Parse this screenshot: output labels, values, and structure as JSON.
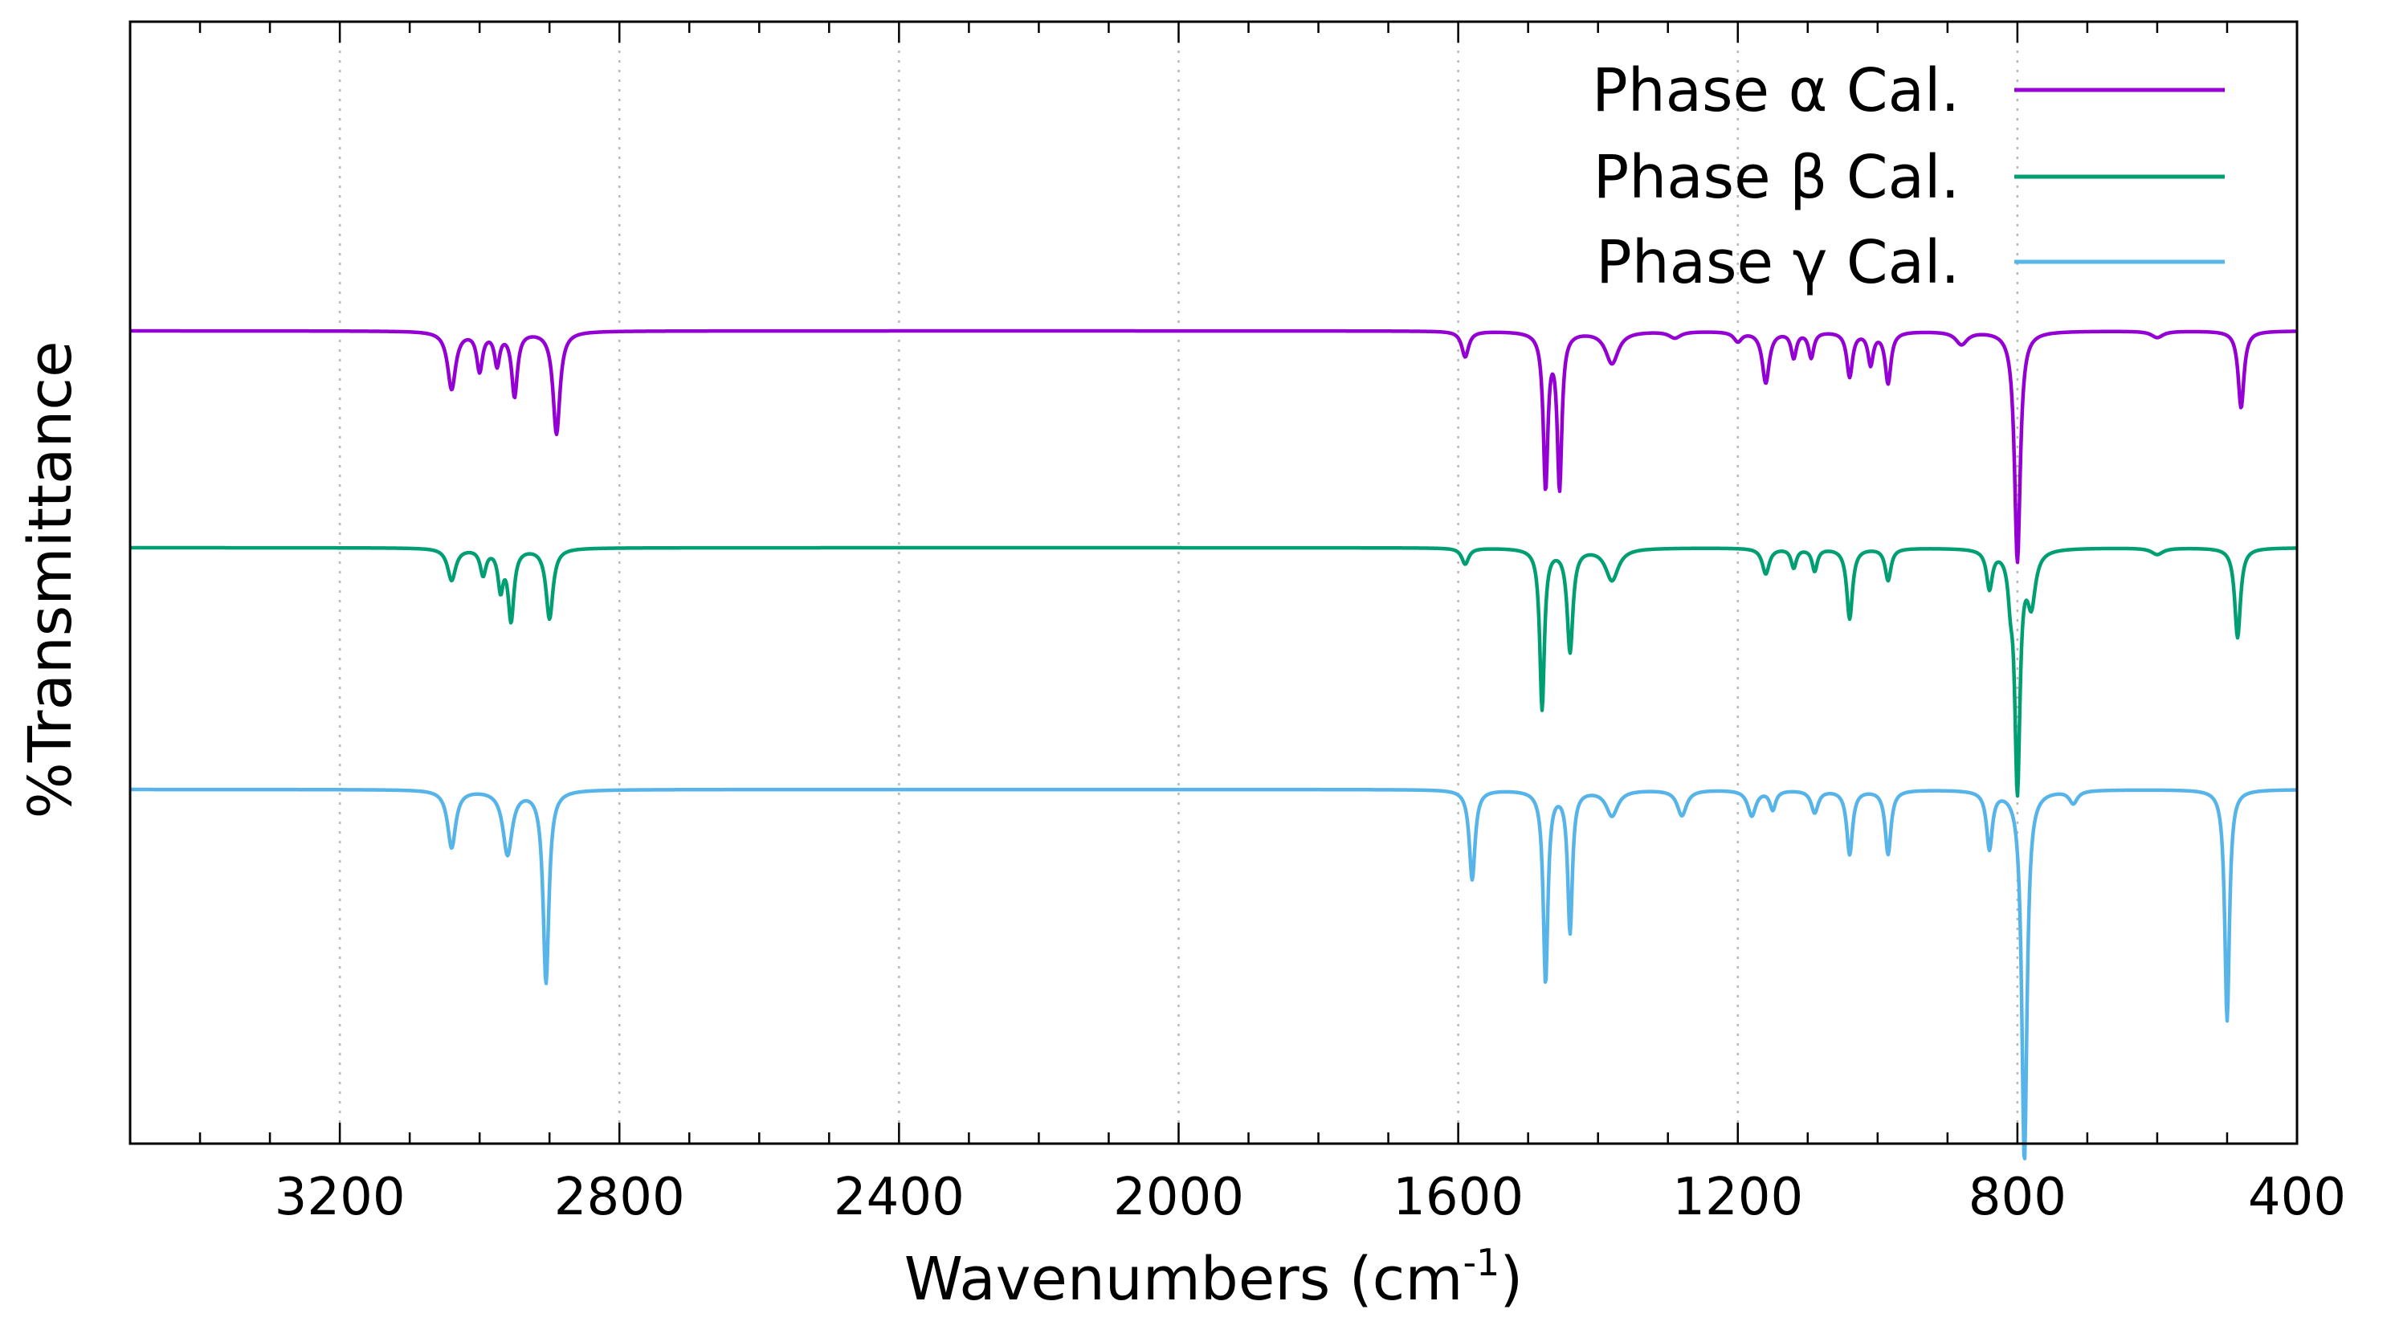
{
  "chart_data": {
    "type": "line",
    "title": "",
    "xlabel": "Wavenumbers (cm",
    "xlabel_sup": "-1",
    "xlabel_close": ")",
    "ylabel": "%Transmittance",
    "xlim": [
      3500,
      400
    ],
    "x_reversed": true,
    "x_ticks": [
      3200,
      2800,
      2400,
      2000,
      1600,
      1200,
      800,
      400
    ],
    "x_minor_step": 100,
    "grid": "vertical-dotted",
    "y_ticks": "none",
    "legend_position": "top-right",
    "baseline": 100,
    "series": [
      {
        "name": "Phase α Cal.",
        "color": "#9400D3",
        "offset": 0,
        "peaks": [
          {
            "x": 3040,
            "depth": 0.09,
            "width": 14
          },
          {
            "x": 3000,
            "depth": 0.06,
            "width": 10
          },
          {
            "x": 2975,
            "depth": 0.05,
            "width": 9
          },
          {
            "x": 2950,
            "depth": 0.1,
            "width": 10
          },
          {
            "x": 2890,
            "depth": 0.16,
            "width": 12
          },
          {
            "x": 1590,
            "depth": 0.04,
            "width": 12
          },
          {
            "x": 1475,
            "depth": 0.24,
            "width": 8
          },
          {
            "x": 1455,
            "depth": 0.24,
            "width": 8
          },
          {
            "x": 1380,
            "depth": 0.05,
            "width": 22
          },
          {
            "x": 1290,
            "depth": 0.01,
            "width": 20
          },
          {
            "x": 1200,
            "depth": 0.015,
            "width": 14
          },
          {
            "x": 1160,
            "depth": 0.08,
            "width": 12
          },
          {
            "x": 1120,
            "depth": 0.04,
            "width": 9
          },
          {
            "x": 1095,
            "depth": 0.04,
            "width": 9
          },
          {
            "x": 1040,
            "depth": 0.07,
            "width": 10
          },
          {
            "x": 1010,
            "depth": 0.05,
            "width": 9
          },
          {
            "x": 985,
            "depth": 0.08,
            "width": 10
          },
          {
            "x": 880,
            "depth": 0.02,
            "width": 20
          },
          {
            "x": 800,
            "depth": 0.36,
            "width": 10
          },
          {
            "x": 600,
            "depth": 0.01,
            "width": 20
          },
          {
            "x": 480,
            "depth": 0.12,
            "width": 10
          }
        ]
      },
      {
        "name": "Phase β Cal.",
        "color": "#009E73",
        "offset": 0,
        "peaks": [
          {
            "x": 3040,
            "depth": 0.05,
            "width": 14
          },
          {
            "x": 2995,
            "depth": 0.04,
            "width": 10
          },
          {
            "x": 2970,
            "depth": 0.06,
            "width": 9
          },
          {
            "x": 2955,
            "depth": 0.11,
            "width": 10
          },
          {
            "x": 2900,
            "depth": 0.11,
            "width": 12
          },
          {
            "x": 1590,
            "depth": 0.025,
            "width": 12
          },
          {
            "x": 1480,
            "depth": 0.25,
            "width": 8
          },
          {
            "x": 1440,
            "depth": 0.16,
            "width": 10
          },
          {
            "x": 1380,
            "depth": 0.05,
            "width": 22
          },
          {
            "x": 1160,
            "depth": 0.04,
            "width": 12
          },
          {
            "x": 1120,
            "depth": 0.03,
            "width": 9
          },
          {
            "x": 1090,
            "depth": 0.035,
            "width": 9
          },
          {
            "x": 1040,
            "depth": 0.11,
            "width": 10
          },
          {
            "x": 985,
            "depth": 0.05,
            "width": 10
          },
          {
            "x": 840,
            "depth": 0.06,
            "width": 10
          },
          {
            "x": 810,
            "depth": 0.05,
            "width": 8
          },
          {
            "x": 800,
            "depth": 0.37,
            "width": 9
          },
          {
            "x": 780,
            "depth": 0.08,
            "width": 14
          },
          {
            "x": 600,
            "depth": 0.01,
            "width": 20
          },
          {
            "x": 485,
            "depth": 0.14,
            "width": 10
          }
        ]
      },
      {
        "name": "Phase γ Cal.",
        "color": "#56B4E9",
        "offset": 0,
        "peaks": [
          {
            "x": 3040,
            "depth": 0.09,
            "width": 14
          },
          {
            "x": 2960,
            "depth": 0.1,
            "width": 16
          },
          {
            "x": 2905,
            "depth": 0.3,
            "width": 10
          },
          {
            "x": 1580,
            "depth": 0.14,
            "width": 10
          },
          {
            "x": 1475,
            "depth": 0.3,
            "width": 8
          },
          {
            "x": 1440,
            "depth": 0.22,
            "width": 8
          },
          {
            "x": 1380,
            "depth": 0.04,
            "width": 20
          },
          {
            "x": 1280,
            "depth": 0.04,
            "width": 16
          },
          {
            "x": 1180,
            "depth": 0.04,
            "width": 14
          },
          {
            "x": 1150,
            "depth": 0.03,
            "width": 10
          },
          {
            "x": 1090,
            "depth": 0.035,
            "width": 12
          },
          {
            "x": 1040,
            "depth": 0.1,
            "width": 10
          },
          {
            "x": 985,
            "depth": 0.1,
            "width": 10
          },
          {
            "x": 840,
            "depth": 0.09,
            "width": 10
          },
          {
            "x": 790,
            "depth": 0.58,
            "width": 9
          },
          {
            "x": 720,
            "depth": 0.02,
            "width": 14
          },
          {
            "x": 500,
            "depth": 0.36,
            "width": 8
          }
        ]
      }
    ]
  }
}
